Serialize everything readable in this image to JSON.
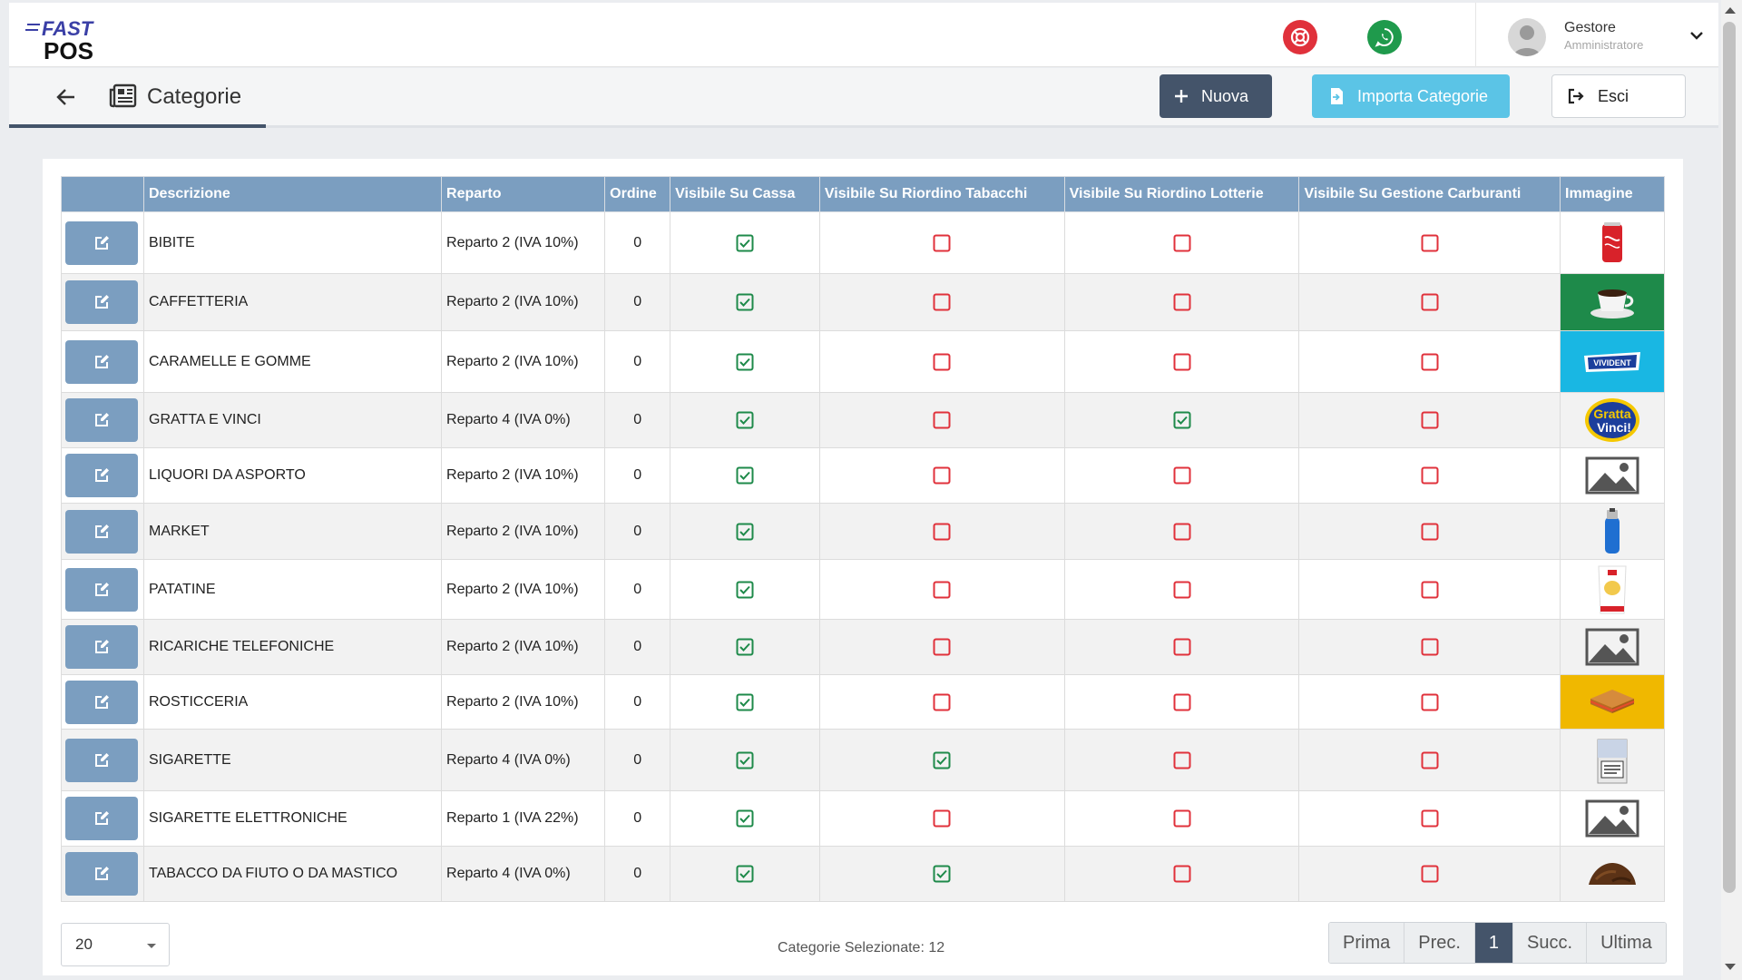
{
  "brand": {
    "line1": "FAST",
    "line2": "POS"
  },
  "header": {
    "user_name": "Gestore",
    "user_role": "Amministratore",
    "help_icon": "lifebuoy-icon",
    "whatsapp_icon": "whatsapp-icon"
  },
  "toolbar": {
    "title": "Categorie",
    "new_label": "Nuova",
    "import_label": "Importa Categorie",
    "exit_label": "Esci"
  },
  "table": {
    "columns": [
      "Descrizione",
      "Reparto",
      "Ordine",
      "Visibile Su Cassa",
      "Visibile Su Riordino Tabacchi",
      "Visibile Su Riordino Lotterie",
      "Visibile Su Gestione Carburanti",
      "Immagine"
    ],
    "rows": [
      {
        "desc": "BIBITE",
        "reparto": "Reparto 2 (IVA 10%)",
        "ordine": "0",
        "cassa": true,
        "tabacchi": false,
        "lotterie": false,
        "carburanti": false,
        "image": "soda-can"
      },
      {
        "desc": "CAFFETTERIA",
        "reparto": "Reparto 2 (IVA 10%)",
        "ordine": "0",
        "cassa": true,
        "tabacchi": false,
        "lotterie": false,
        "carburanti": false,
        "image": "coffee-cup"
      },
      {
        "desc": "CARAMELLE E GOMME",
        "reparto": "Reparto 2 (IVA 10%)",
        "ordine": "0",
        "cassa": true,
        "tabacchi": false,
        "lotterie": false,
        "carburanti": false,
        "image": "vivident-gum"
      },
      {
        "desc": "GRATTA E VINCI",
        "reparto": "Reparto 4 (IVA 0%)",
        "ordine": "0",
        "cassa": true,
        "tabacchi": false,
        "lotterie": true,
        "carburanti": false,
        "image": "gratta-vinci-logo"
      },
      {
        "desc": "LIQUORI DA ASPORTO",
        "reparto": "Reparto 2 (IVA 10%)",
        "ordine": "0",
        "cassa": true,
        "tabacchi": false,
        "lotterie": false,
        "carburanti": false,
        "image": "image-placeholder"
      },
      {
        "desc": "MARKET",
        "reparto": "Reparto 2 (IVA 10%)",
        "ordine": "0",
        "cassa": true,
        "tabacchi": false,
        "lotterie": false,
        "carburanti": false,
        "image": "lighter"
      },
      {
        "desc": "PATATINE",
        "reparto": "Reparto 2 (IVA 10%)",
        "ordine": "0",
        "cassa": true,
        "tabacchi": false,
        "lotterie": false,
        "carburanti": false,
        "image": "chips-bag"
      },
      {
        "desc": "RICARICHE TELEFONICHE",
        "reparto": "Reparto 2 (IVA 10%)",
        "ordine": "0",
        "cassa": true,
        "tabacchi": false,
        "lotterie": false,
        "carburanti": false,
        "image": "image-placeholder"
      },
      {
        "desc": "ROSTICCERIA",
        "reparto": "Reparto 2 (IVA 10%)",
        "ordine": "0",
        "cassa": true,
        "tabacchi": false,
        "lotterie": false,
        "carburanti": false,
        "image": "sandwich"
      },
      {
        "desc": "SIGARETTE",
        "reparto": "Reparto 4 (IVA 0%)",
        "ordine": "0",
        "cassa": true,
        "tabacchi": true,
        "lotterie": false,
        "carburanti": false,
        "image": "cigarette-pack"
      },
      {
        "desc": "SIGARETTE ELETTRONICHE",
        "reparto": "Reparto 1 (IVA 22%)",
        "ordine": "0",
        "cassa": true,
        "tabacchi": false,
        "lotterie": false,
        "carburanti": false,
        "image": "image-placeholder"
      },
      {
        "desc": "TABACCO DA FIUTO O DA MASTICO",
        "reparto": "Reparto 4 (IVA 0%)",
        "ordine": "0",
        "cassa": true,
        "tabacchi": true,
        "lotterie": false,
        "carburanti": false,
        "image": "tobacco-pile"
      }
    ]
  },
  "footer": {
    "page_size": "20",
    "selected_text": "Categorie Selezionate: 12",
    "pager": [
      "Prima",
      "Prec.",
      "1",
      "Succ.",
      "Ultima"
    ],
    "current_page": "1"
  },
  "colors": {
    "header_blue": "#7b9ec0",
    "dark_btn": "#44546a",
    "import_btn": "#5bc4e6",
    "check_green": "#1e8a4a",
    "uncheck_red": "#e0313b"
  }
}
